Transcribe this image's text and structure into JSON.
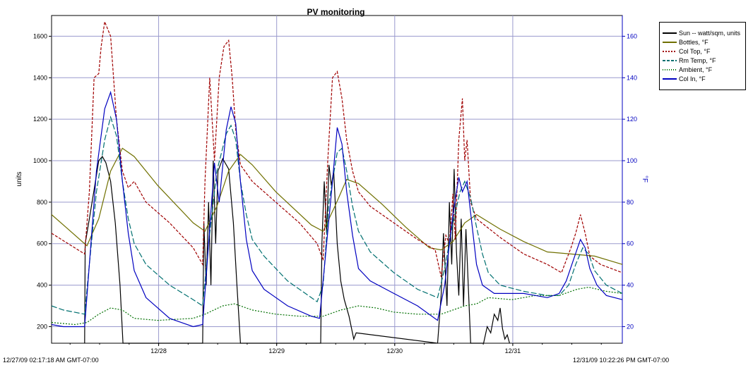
{
  "chart_data": {
    "type": "line",
    "title": "PV monitoring",
    "ylabel_left": "units",
    "ylabel_right": "°F",
    "y_left_ticks": [
      200,
      400,
      600,
      800,
      1000,
      1200,
      1400,
      1600
    ],
    "y_right_ticks": [
      20,
      40,
      60,
      80,
      100,
      120,
      140,
      160
    ],
    "ylim_left": [
      120,
      1700
    ],
    "ylim_right": [
      12,
      170
    ],
    "x_range_days": [
      0,
      4.835
    ],
    "x_tick_labels": [
      {
        "day": 0.907,
        "label": "12/28"
      },
      {
        "day": 1.907,
        "label": "12/29"
      },
      {
        "day": 2.907,
        "label": "12/30"
      },
      {
        "day": 3.907,
        "label": "12/31"
      }
    ],
    "start_label": "12/27/09 02:17:18 AM GMT-07:00",
    "end_label": "12/31/09 10:22:26 PM GMT-07:00",
    "grid": true,
    "legend_position": "right",
    "series": [
      {
        "name": "Sun -- watt/sqm, units",
        "color": "#000000",
        "dash": "",
        "axis": "left",
        "points": [
          [
            0.28,
            120
          ],
          [
            0.285,
            600
          ],
          [
            0.32,
            720
          ],
          [
            0.36,
            860
          ],
          [
            0.4,
            1000
          ],
          [
            0.43,
            1020
          ],
          [
            0.46,
            990
          ],
          [
            0.5,
            900
          ],
          [
            0.54,
            700
          ],
          [
            0.58,
            400
          ],
          [
            0.605,
            120
          ],
          [
            1.28,
            120
          ],
          [
            1.29,
            700
          ],
          [
            1.31,
            400
          ],
          [
            1.33,
            800
          ],
          [
            1.35,
            400
          ],
          [
            1.37,
            1000
          ],
          [
            1.39,
            600
          ],
          [
            1.41,
            950
          ],
          [
            1.45,
            1010
          ],
          [
            1.5,
            960
          ],
          [
            1.54,
            700
          ],
          [
            1.57,
            400
          ],
          [
            1.6,
            120
          ],
          [
            2.28,
            120
          ],
          [
            2.29,
            600
          ],
          [
            2.31,
            900
          ],
          [
            2.33,
            650
          ],
          [
            2.35,
            980
          ],
          [
            2.37,
            880
          ],
          [
            2.39,
            950
          ],
          [
            2.42,
            600
          ],
          [
            2.45,
            420
          ],
          [
            2.48,
            330
          ],
          [
            2.52,
            250
          ],
          [
            2.56,
            140
          ],
          [
            2.58,
            170
          ],
          [
            3.27,
            120
          ],
          [
            3.3,
            350
          ],
          [
            3.32,
            650
          ],
          [
            3.35,
            300
          ],
          [
            3.37,
            800
          ],
          [
            3.39,
            500
          ],
          [
            3.41,
            960
          ],
          [
            3.43,
            560
          ],
          [
            3.45,
            350
          ],
          [
            3.47,
            720
          ],
          [
            3.49,
            300
          ],
          [
            3.51,
            670
          ],
          [
            3.53,
            400
          ],
          [
            3.55,
            120
          ],
          [
            3.66,
            120
          ],
          [
            3.69,
            200
          ],
          [
            3.72,
            170
          ],
          [
            3.75,
            260
          ],
          [
            3.78,
            230
          ],
          [
            3.8,
            290
          ],
          [
            3.82,
            190
          ],
          [
            3.84,
            140
          ],
          [
            3.86,
            160
          ],
          [
            3.88,
            120
          ]
        ]
      },
      {
        "name": "Bottles, °F",
        "color": "#707000",
        "dash": "",
        "axis": "right",
        "points": [
          [
            0,
            74
          ],
          [
            0.12,
            68
          ],
          [
            0.3,
            59
          ],
          [
            0.4,
            72
          ],
          [
            0.5,
            95
          ],
          [
            0.6,
            106
          ],
          [
            0.7,
            102
          ],
          [
            0.9,
            88
          ],
          [
            1.2,
            70
          ],
          [
            1.3,
            66
          ],
          [
            1.4,
            78
          ],
          [
            1.5,
            95
          ],
          [
            1.6,
            103
          ],
          [
            1.7,
            98
          ],
          [
            1.9,
            85
          ],
          [
            2.2,
            69
          ],
          [
            2.3,
            66
          ],
          [
            2.4,
            78
          ],
          [
            2.5,
            91
          ],
          [
            2.6,
            89
          ],
          [
            2.8,
            79
          ],
          [
            3.0,
            68
          ],
          [
            3.2,
            58
          ],
          [
            3.3,
            57
          ],
          [
            3.4,
            61
          ],
          [
            3.5,
            70
          ],
          [
            3.6,
            74
          ],
          [
            3.8,
            67
          ],
          [
            4.0,
            61
          ],
          [
            4.2,
            56
          ],
          [
            4.4,
            55
          ],
          [
            4.6,
            54
          ],
          [
            4.835,
            50
          ]
        ]
      },
      {
        "name": "Col Top, °F",
        "color": "#a00000",
        "dash": "4,2",
        "axis": "right",
        "points": [
          [
            0,
            65
          ],
          [
            0.28,
            55
          ],
          [
            0.32,
            85
          ],
          [
            0.36,
            140
          ],
          [
            0.4,
            142
          ],
          [
            0.42,
            155
          ],
          [
            0.45,
            167
          ],
          [
            0.5,
            160
          ],
          [
            0.55,
            120
          ],
          [
            0.6,
            95
          ],
          [
            0.65,
            87
          ],
          [
            0.7,
            90
          ],
          [
            0.8,
            80
          ],
          [
            1.0,
            70
          ],
          [
            1.2,
            58
          ],
          [
            1.28,
            50
          ],
          [
            1.3,
            90
          ],
          [
            1.34,
            140
          ],
          [
            1.38,
            100
          ],
          [
            1.42,
            140
          ],
          [
            1.46,
            155
          ],
          [
            1.5,
            158
          ],
          [
            1.53,
            140
          ],
          [
            1.56,
            115
          ],
          [
            1.6,
            98
          ],
          [
            1.7,
            90
          ],
          [
            1.9,
            80
          ],
          [
            2.1,
            70
          ],
          [
            2.25,
            60
          ],
          [
            2.3,
            52
          ],
          [
            2.34,
            100
          ],
          [
            2.38,
            140
          ],
          [
            2.42,
            143
          ],
          [
            2.46,
            130
          ],
          [
            2.5,
            110
          ],
          [
            2.55,
            95
          ],
          [
            2.6,
            85
          ],
          [
            2.7,
            78
          ],
          [
            2.9,
            70
          ],
          [
            3.1,
            62
          ],
          [
            3.25,
            57
          ],
          [
            3.3,
            44
          ],
          [
            3.34,
            64
          ],
          [
            3.37,
            60
          ],
          [
            3.4,
            84
          ],
          [
            3.42,
            62
          ],
          [
            3.45,
            110
          ],
          [
            3.48,
            130
          ],
          [
            3.5,
            100
          ],
          [
            3.52,
            110
          ],
          [
            3.55,
            80
          ],
          [
            3.6,
            72
          ],
          [
            3.8,
            63
          ],
          [
            4.0,
            55
          ],
          [
            4.2,
            50
          ],
          [
            4.32,
            46
          ],
          [
            4.36,
            52
          ],
          [
            4.4,
            58
          ],
          [
            4.44,
            65
          ],
          [
            4.48,
            74
          ],
          [
            4.52,
            65
          ],
          [
            4.56,
            54
          ],
          [
            4.65,
            50
          ],
          [
            4.835,
            46
          ]
        ]
      },
      {
        "name": "Rm Temp, °F",
        "color": "#007070",
        "dash": "8,3",
        "axis": "right",
        "points": [
          [
            0,
            30
          ],
          [
            0.1,
            28
          ],
          [
            0.28,
            26
          ],
          [
            0.32,
            50
          ],
          [
            0.38,
            85
          ],
          [
            0.45,
            110
          ],
          [
            0.5,
            121
          ],
          [
            0.55,
            112
          ],
          [
            0.6,
            90
          ],
          [
            0.65,
            72
          ],
          [
            0.7,
            60
          ],
          [
            0.8,
            50
          ],
          [
            1.0,
            40
          ],
          [
            1.2,
            33
          ],
          [
            1.28,
            30
          ],
          [
            1.33,
            60
          ],
          [
            1.4,
            95
          ],
          [
            1.48,
            113
          ],
          [
            1.52,
            117
          ],
          [
            1.56,
            110
          ],
          [
            1.6,
            90
          ],
          [
            1.65,
            74
          ],
          [
            1.7,
            62
          ],
          [
            1.8,
            54
          ],
          [
            2.0,
            42
          ],
          [
            2.25,
            32
          ],
          [
            2.3,
            40
          ],
          [
            2.35,
            80
          ],
          [
            2.42,
            104
          ],
          [
            2.46,
            106
          ],
          [
            2.5,
            95
          ],
          [
            2.55,
            78
          ],
          [
            2.6,
            66
          ],
          [
            2.7,
            56
          ],
          [
            2.9,
            46
          ],
          [
            3.1,
            38
          ],
          [
            3.27,
            34
          ],
          [
            3.33,
            48
          ],
          [
            3.4,
            70
          ],
          [
            3.46,
            85
          ],
          [
            3.5,
            90
          ],
          [
            3.55,
            82
          ],
          [
            3.6,
            68
          ],
          [
            3.65,
            55
          ],
          [
            3.7,
            46
          ],
          [
            3.8,
            40
          ],
          [
            4.0,
            37
          ],
          [
            4.2,
            35
          ],
          [
            4.3,
            35
          ],
          [
            4.38,
            40
          ],
          [
            4.44,
            50
          ],
          [
            4.5,
            58
          ],
          [
            4.55,
            55
          ],
          [
            4.6,
            47
          ],
          [
            4.7,
            40
          ],
          [
            4.835,
            36
          ]
        ]
      },
      {
        "name": "Ambient, °F",
        "color": "#007000",
        "dash": "2,2",
        "axis": "right",
        "points": [
          [
            0,
            22
          ],
          [
            0.2,
            21
          ],
          [
            0.3,
            22
          ],
          [
            0.4,
            26
          ],
          [
            0.5,
            29
          ],
          [
            0.6,
            28
          ],
          [
            0.7,
            24
          ],
          [
            0.9,
            23
          ],
          [
            1.2,
            24
          ],
          [
            1.3,
            26
          ],
          [
            1.45,
            30
          ],
          [
            1.55,
            31
          ],
          [
            1.7,
            28
          ],
          [
            1.9,
            26
          ],
          [
            2.1,
            25
          ],
          [
            2.3,
            25
          ],
          [
            2.45,
            28
          ],
          [
            2.6,
            30
          ],
          [
            2.75,
            29
          ],
          [
            2.9,
            27
          ],
          [
            3.1,
            26
          ],
          [
            3.3,
            26
          ],
          [
            3.5,
            30
          ],
          [
            3.6,
            31
          ],
          [
            3.7,
            34
          ],
          [
            3.9,
            33
          ],
          [
            4.1,
            35
          ],
          [
            4.3,
            35
          ],
          [
            4.45,
            38
          ],
          [
            4.55,
            39
          ],
          [
            4.7,
            37
          ],
          [
            4.835,
            36
          ]
        ]
      },
      {
        "name": "Col In, °F",
        "color": "#0000c0",
        "dash": "",
        "axis": "right",
        "points": [
          [
            0,
            21
          ],
          [
            0.1,
            20
          ],
          [
            0.28,
            20
          ],
          [
            0.32,
            50
          ],
          [
            0.38,
            95
          ],
          [
            0.45,
            125
          ],
          [
            0.5,
            133
          ],
          [
            0.55,
            120
          ],
          [
            0.6,
            90
          ],
          [
            0.65,
            65
          ],
          [
            0.7,
            47
          ],
          [
            0.8,
            34
          ],
          [
            1.0,
            24
          ],
          [
            1.2,
            20
          ],
          [
            1.28,
            21
          ],
          [
            1.33,
            60
          ],
          [
            1.38,
            99
          ],
          [
            1.42,
            80
          ],
          [
            1.48,
            115
          ],
          [
            1.52,
            126
          ],
          [
            1.56,
            118
          ],
          [
            1.6,
            90
          ],
          [
            1.65,
            62
          ],
          [
            1.7,
            47
          ],
          [
            1.8,
            38
          ],
          [
            2.0,
            30
          ],
          [
            2.2,
            25
          ],
          [
            2.27,
            24
          ],
          [
            2.33,
            60
          ],
          [
            2.38,
            90
          ],
          [
            2.42,
            116
          ],
          [
            2.46,
            108
          ],
          [
            2.5,
            85
          ],
          [
            2.55,
            64
          ],
          [
            2.6,
            48
          ],
          [
            2.7,
            42
          ],
          [
            2.9,
            36
          ],
          [
            3.1,
            30
          ],
          [
            3.27,
            23
          ],
          [
            3.33,
            40
          ],
          [
            3.4,
            74
          ],
          [
            3.45,
            92
          ],
          [
            3.48,
            85
          ],
          [
            3.52,
            90
          ],
          [
            3.56,
            70
          ],
          [
            3.6,
            50
          ],
          [
            3.65,
            40
          ],
          [
            3.75,
            36
          ],
          [
            4.0,
            36
          ],
          [
            4.2,
            34
          ],
          [
            4.3,
            36
          ],
          [
            4.36,
            42
          ],
          [
            4.42,
            52
          ],
          [
            4.48,
            62
          ],
          [
            4.52,
            58
          ],
          [
            4.56,
            48
          ],
          [
            4.62,
            40
          ],
          [
            4.7,
            35
          ],
          [
            4.835,
            33
          ]
        ]
      }
    ]
  }
}
